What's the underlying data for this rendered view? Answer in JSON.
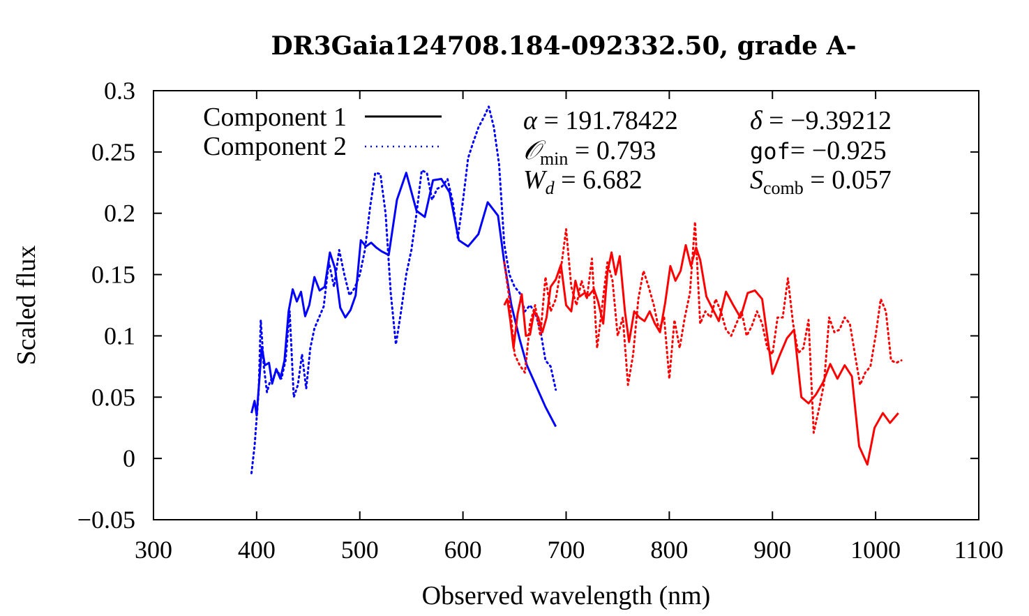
{
  "chart_data": {
    "type": "line",
    "title": "DR3Gaia124708.184-092332.50, grade A-",
    "xlabel": "Observed wavelength (nm)",
    "ylabel": "Scaled flux",
    "xlim": [
      300,
      1100
    ],
    "ylim": [
      -0.05,
      0.3
    ],
    "x_ticks": [
      300,
      400,
      500,
      600,
      700,
      800,
      900,
      1000,
      1100
    ],
    "y_ticks": [
      -0.05,
      0,
      0.05,
      0.1,
      0.15,
      0.2,
      0.25,
      0.3
    ],
    "x_tick_labels": [
      "300",
      "400",
      "500",
      "600",
      "700",
      "800",
      "900",
      "1000",
      "1100"
    ],
    "y_tick_labels": [
      "−0.05",
      "0",
      "0.05",
      "0.1",
      "0.15",
      "0.2",
      "0.25",
      "0.3"
    ],
    "legend": {
      "placement": "top-left",
      "entries": [
        {
          "label": "Component 1",
          "style": "solid"
        },
        {
          "label": "Component 2",
          "style": "dotted"
        }
      ]
    },
    "stats": {
      "alpha": "191.78422",
      "delta": "−9.39212",
      "o_min": "0.793",
      "gof_label": "gof",
      "gof": "−0.925",
      "w_d": "6.682",
      "s_comb": "0.057"
    },
    "colors": {
      "blue": "#0000ff",
      "red": "#ff0000",
      "axis": "#000000"
    },
    "series": [
      {
        "name": "Component 1",
        "color": "blue",
        "style": "solid",
        "x": [
          395,
          398,
          400,
          405,
          408,
          412,
          415,
          419,
          423,
          427,
          431,
          435,
          439,
          443,
          447,
          451,
          456,
          461,
          466,
          471,
          476,
          481,
          486,
          491,
          496,
          501,
          506,
          511,
          516,
          521,
          528,
          536,
          545,
          555,
          563,
          571,
          579,
          587,
          596,
          605,
          615,
          624,
          634,
          640,
          647,
          655,
          662,
          670,
          680,
          690
        ],
        "y": [
          0.037,
          0.047,
          0.035,
          0.091,
          0.076,
          0.078,
          0.061,
          0.073,
          0.065,
          0.08,
          0.12,
          0.138,
          0.128,
          0.136,
          0.116,
          0.125,
          0.148,
          0.137,
          0.14,
          0.168,
          0.155,
          0.123,
          0.115,
          0.121,
          0.133,
          0.178,
          0.173,
          0.176,
          0.172,
          0.169,
          0.166,
          0.211,
          0.233,
          0.202,
          0.197,
          0.227,
          0.228,
          0.217,
          0.178,
          0.173,
          0.183,
          0.209,
          0.198,
          0.16,
          0.125,
          0.097,
          0.076,
          0.061,
          0.042,
          0.026
        ]
      },
      {
        "name": "Component 2",
        "color": "blue",
        "style": "dotted",
        "x": [
          395,
          398,
          402,
          404,
          407,
          410,
          413,
          416,
          420,
          424,
          428,
          432,
          436,
          440,
          444,
          448,
          452,
          456,
          460,
          465,
          470,
          475,
          480,
          485,
          490,
          495,
          500,
          505,
          510,
          515,
          520,
          525,
          530,
          535,
          540,
          545,
          550,
          555,
          560,
          565,
          570,
          575,
          580,
          585,
          590,
          595,
          600,
          605,
          610,
          615,
          620,
          625,
          630,
          635,
          640,
          645,
          650,
          655,
          660,
          665,
          670,
          675,
          680,
          685,
          690
        ],
        "y": [
          -0.012,
          0.01,
          0.055,
          0.113,
          0.075,
          0.054,
          0.063,
          0.066,
          0.072,
          0.065,
          0.08,
          0.12,
          0.05,
          0.06,
          0.085,
          0.057,
          0.09,
          0.106,
          0.114,
          0.124,
          0.16,
          0.14,
          0.17,
          0.15,
          0.133,
          0.139,
          0.15,
          0.17,
          0.205,
          0.233,
          0.232,
          0.2,
          0.135,
          0.093,
          0.12,
          0.15,
          0.17,
          0.2,
          0.235,
          0.233,
          0.211,
          0.22,
          0.222,
          0.228,
          0.21,
          0.18,
          0.21,
          0.245,
          0.258,
          0.27,
          0.278,
          0.287,
          0.27,
          0.24,
          0.175,
          0.15,
          0.14,
          0.135,
          0.12,
          0.125,
          0.119,
          0.105,
          0.08,
          0.075,
          0.056
        ]
      },
      {
        "name": "Component 1",
        "color": "red",
        "style": "solid",
        "x": [
          640,
          643,
          646,
          649,
          653,
          657,
          661,
          665,
          669,
          673,
          677,
          681,
          685,
          690,
          695,
          700,
          705,
          709,
          713,
          718,
          722,
          727,
          731,
          736,
          740,
          744,
          748,
          752,
          757,
          761,
          766,
          771,
          776,
          781,
          786,
          791,
          796,
          801,
          806,
          811,
          816,
          821,
          826,
          830,
          836,
          842,
          848,
          855,
          862,
          869,
          876,
          883,
          890,
          900,
          907,
          914,
          921,
          928,
          935,
          942,
          949,
          956,
          963,
          970,
          977,
          984,
          992,
          999,
          1007,
          1014,
          1022
        ],
        "y": [
          0.125,
          0.13,
          0.112,
          0.09,
          0.118,
          0.134,
          0.1,
          0.101,
          0.12,
          0.115,
          0.103,
          0.115,
          0.14,
          0.146,
          0.158,
          0.125,
          0.12,
          0.145,
          0.132,
          0.135,
          0.133,
          0.138,
          0.128,
          0.11,
          0.152,
          0.168,
          0.15,
          0.165,
          0.12,
          0.095,
          0.12,
          0.115,
          0.112,
          0.12,
          0.11,
          0.103,
          0.127,
          0.157,
          0.145,
          0.153,
          0.174,
          0.157,
          0.172,
          0.162,
          0.132,
          0.122,
          0.112,
          0.136,
          0.125,
          0.115,
          0.135,
          0.137,
          0.13,
          0.069,
          0.084,
          0.098,
          0.105,
          0.05,
          0.045,
          0.052,
          0.062,
          0.077,
          0.065,
          0.076,
          0.067,
          0.01,
          -0.005,
          0.025,
          0.037,
          0.029,
          0.037
        ]
      },
      {
        "name": "Component 2",
        "color": "red",
        "style": "dotted",
        "x": [
          640,
          645,
          650,
          655,
          660,
          665,
          670,
          675,
          680,
          685,
          690,
          695,
          700,
          705,
          710,
          715,
          720,
          725,
          730,
          735,
          740,
          745,
          750,
          755,
          760,
          765,
          770,
          775,
          780,
          785,
          790,
          795,
          800,
          805,
          810,
          815,
          820,
          825,
          830,
          835,
          840,
          845,
          850,
          855,
          860,
          865,
          870,
          875,
          880,
          885,
          890,
          895,
          900,
          905,
          910,
          915,
          920,
          925,
          930,
          935,
          940,
          945,
          950,
          955,
          960,
          965,
          970,
          975,
          980,
          985,
          990,
          995,
          1000,
          1005,
          1010,
          1015,
          1020,
          1025
        ],
        "y": [
          0.16,
          0.13,
          0.085,
          0.076,
          0.07,
          0.11,
          0.125,
          0.1,
          0.148,
          0.12,
          0.13,
          0.155,
          0.187,
          0.14,
          0.125,
          0.145,
          0.13,
          0.163,
          0.09,
          0.125,
          0.16,
          0.145,
          0.1,
          0.115,
          0.06,
          0.085,
          0.13,
          0.153,
          0.14,
          0.125,
          0.105,
          0.115,
          0.065,
          0.113,
          0.09,
          0.115,
          0.135,
          0.193,
          0.11,
          0.12,
          0.115,
          0.13,
          0.12,
          0.105,
          0.1,
          0.11,
          0.12,
          0.1,
          0.108,
          0.12,
          0.11,
          0.09,
          0.085,
          0.115,
          0.115,
          0.147,
          0.11,
          0.086,
          0.09,
          0.113,
          0.021,
          0.04,
          0.061,
          0.115,
          0.103,
          0.105,
          0.115,
          0.11,
          0.085,
          0.06,
          0.07,
          0.075,
          0.1,
          0.13,
          0.12,
          0.08,
          0.078,
          0.08
        ]
      }
    ]
  }
}
